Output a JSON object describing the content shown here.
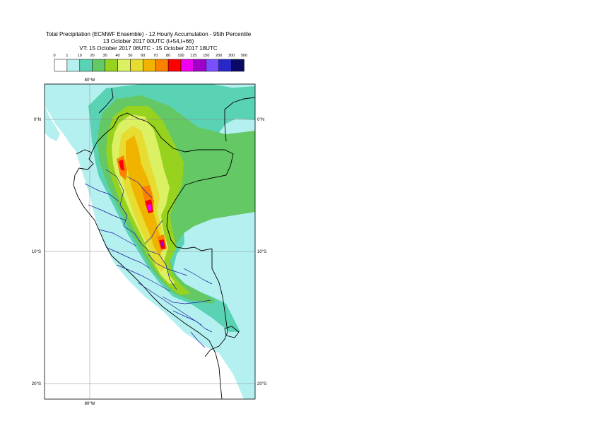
{
  "title": {
    "line1": "Total Precipitation (ECMWF Ensemble) - 12 Hourly Accumulation - 95th Percentile",
    "line2": "13 October 2017 00UTC (t+54,t+66)",
    "line3": "VT: 15 October 2017 06UTC - 15 October 2017 18UTC"
  },
  "legend": {
    "ticks": [
      "0",
      "1",
      "10",
      "20",
      "30",
      "40",
      "50",
      "60",
      "70",
      "80",
      "100",
      "125",
      "150",
      "200",
      "300",
      "500"
    ],
    "colors": [
      "#ffffff",
      "#b4f0f0",
      "#5ad2b4",
      "#64c864",
      "#96d21e",
      "#dcf064",
      "#e6dc32",
      "#f0b400",
      "#fa8200",
      "#ff0000",
      "#f000f0",
      "#a000c8",
      "#7850ff",
      "#2828c8",
      "#0a0a64"
    ]
  },
  "map": {
    "top_lon_label": "80°W",
    "bottom_lon_label": "80°W",
    "lat_labels_left": [
      "0°N",
      "10°S",
      "20°S"
    ],
    "lat_labels_right": [
      "0°N",
      "10°S",
      "20°S"
    ]
  }
}
